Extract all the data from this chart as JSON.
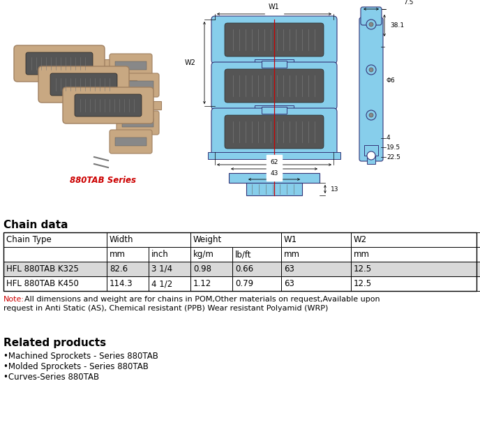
{
  "bg_color": "#ffffff",
  "title_880tab": "880TAB Series",
  "title_880tab_color": "#cc0000",
  "section_chain_data": "Chain data",
  "section_related": "Related products",
  "table_row1": [
    "HFL 880TAB K325",
    "82.6",
    "3 1/4",
    "0.98",
    "0.66",
    "63",
    "12.5"
  ],
  "table_row2": [
    "HFL 880TAB K450",
    "114.3",
    "4 1/2",
    "1.12",
    "0.79",
    "63",
    "12.5"
  ],
  "row1_bg": "#d9d9d9",
  "row2_bg": "#ffffff",
  "note_label": "Note:",
  "note_label_color": "#cc0000",
  "note_line1": "All dimensions and weight are for chains in POM,Other materials on request,Available upon",
  "note_line2": "request in Anti Static (AS), Chemical resistant (PPB) Wear resistant Polyamid (WRP)",
  "related_items": [
    "•Machined Sprockets - Series 880TAB",
    "•Molded Sprockets - Series 880TAB",
    "•Curves-Series 880TAB"
  ],
  "light_blue": "#87ceeb",
  "dark_rubber": "#555555",
  "link_color": "#c8a882",
  "link_edge": "#a08060",
  "diagram_red": "#cc0000",
  "line_color": "#333377"
}
